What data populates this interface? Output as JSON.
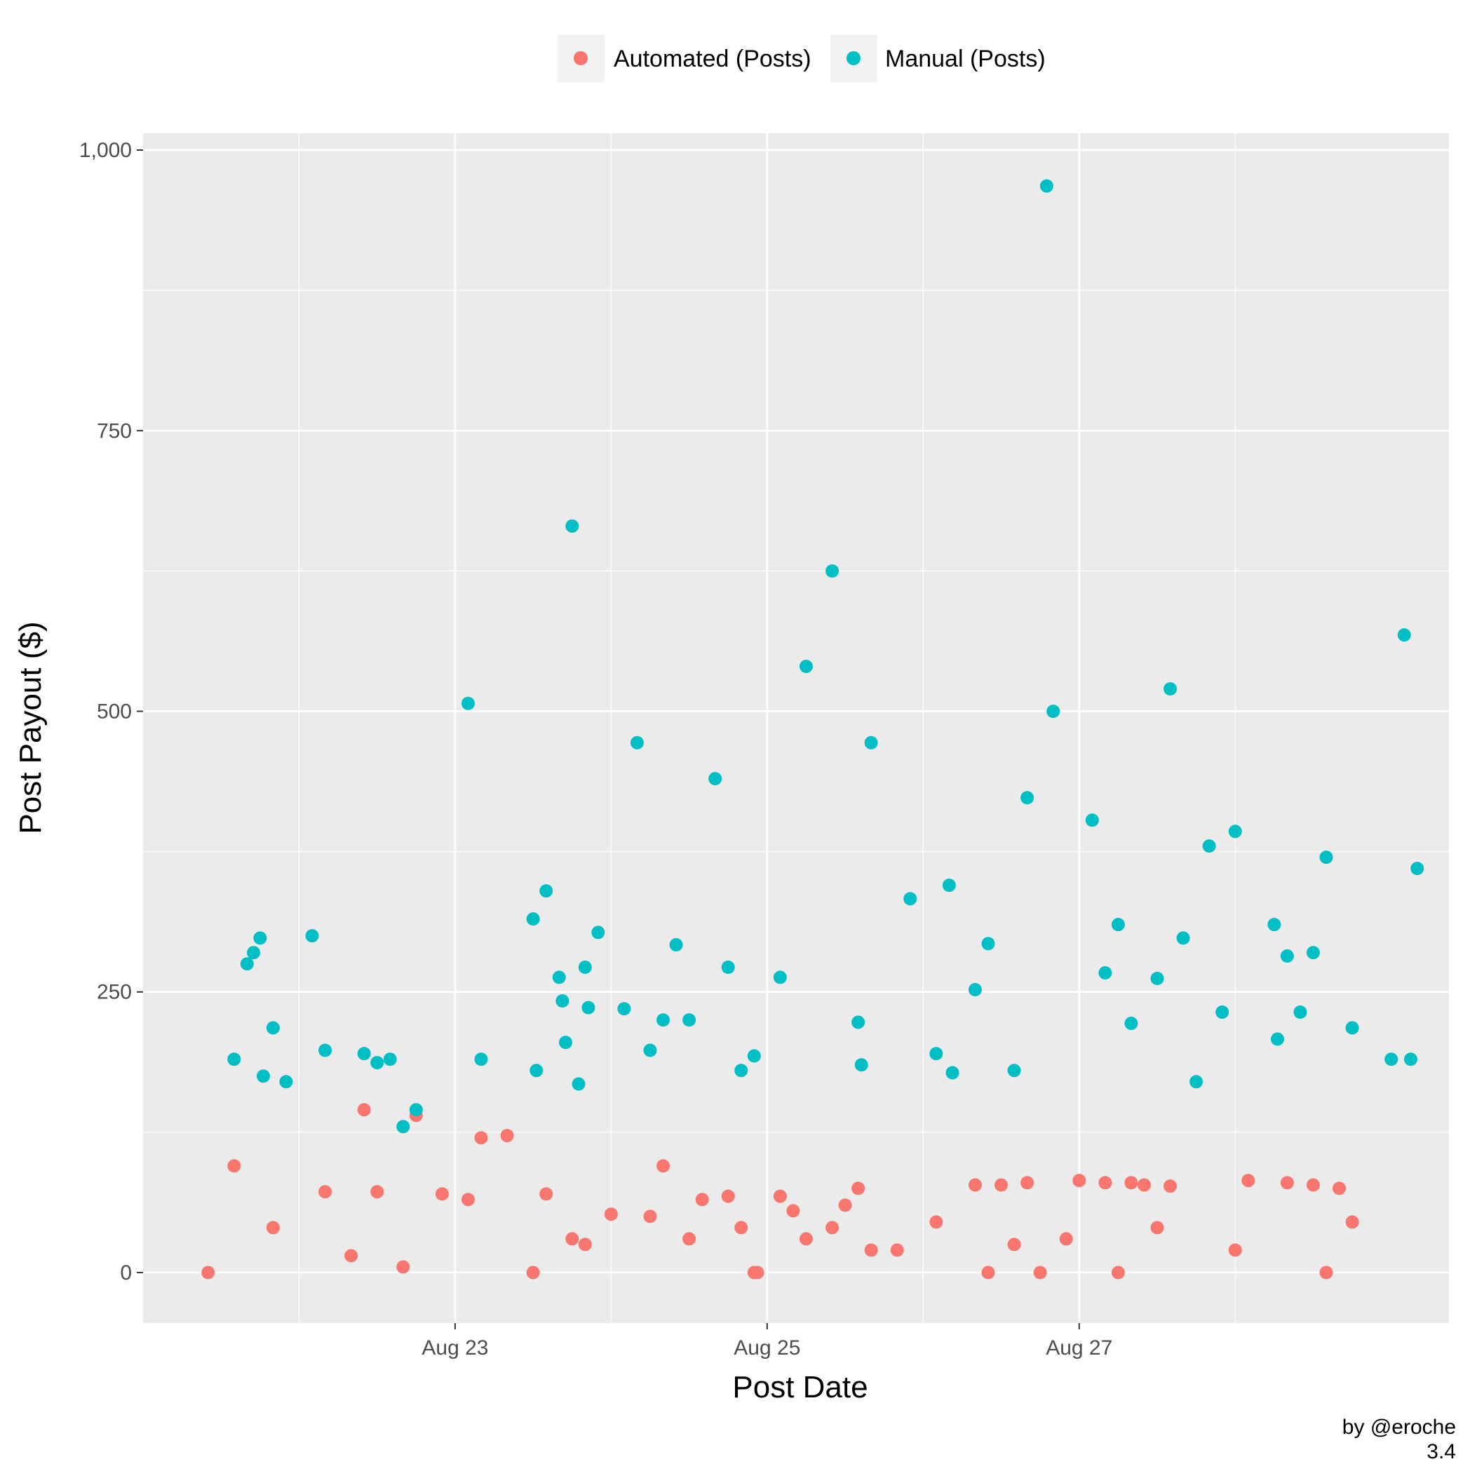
{
  "chart_data": {
    "type": "scatter",
    "xlabel": "Post Date",
    "ylabel": "Post Payout ($)",
    "x_axis_kind": "date",
    "x_ticks": [
      "2017-08-23",
      "2017-08-25",
      "2017-08-27"
    ],
    "x_tick_labels": [
      "Aug 23",
      "Aug 25",
      "Aug 27"
    ],
    "xlim": [
      "2017-08-21",
      "2017-08-28"
    ],
    "y_ticks": [
      0,
      250,
      500,
      750,
      1000
    ],
    "y_tick_labels": [
      "0",
      "250",
      "500",
      "750",
      "1,000"
    ],
    "ylim": [
      -45,
      1015
    ],
    "grid": true,
    "legend_position": "top",
    "colors": {
      "Automated (Posts)": "#F8766D",
      "Manual (Posts)": "#00BFC4"
    },
    "series": [
      {
        "name": "Automated (Posts)",
        "points": [
          [
            "2017-08-21 14:00",
            95
          ],
          [
            "2017-08-22 04:00",
            72
          ],
          [
            "2017-08-22 10:00",
            145
          ],
          [
            "2017-08-22 12:00",
            72
          ],
          [
            "2017-08-21 20:00",
            40
          ],
          [
            "2017-08-22 08:00",
            15
          ],
          [
            "2017-08-21 10:00",
            0
          ],
          [
            "2017-08-22 16:00",
            5
          ],
          [
            "2017-08-22 18:00",
            140
          ],
          [
            "2017-08-23 04:00",
            120
          ],
          [
            "2017-08-23 08:00",
            122
          ],
          [
            "2017-08-22 22:00",
            70
          ],
          [
            "2017-08-23 02:00",
            65
          ],
          [
            "2017-08-23 14:00",
            70
          ],
          [
            "2017-08-23 12:00",
            0
          ],
          [
            "2017-08-23 18:00",
            30
          ],
          [
            "2017-08-23 20:00",
            25
          ],
          [
            "2017-08-24 08:00",
            95
          ],
          [
            "2017-08-24 06:00",
            50
          ],
          [
            "2017-08-24 14:00",
            65
          ],
          [
            "2017-08-24 18:00",
            68
          ],
          [
            "2017-08-24 20:00",
            40
          ],
          [
            "2017-08-24 00:00",
            52
          ],
          [
            "2017-08-24 22:00",
            0
          ],
          [
            "2017-08-24 12:00",
            30
          ],
          [
            "2017-08-25 02:00",
            68
          ],
          [
            "2017-08-25 04:00",
            55
          ],
          [
            "2017-08-25 12:00",
            60
          ],
          [
            "2017-08-25 14:00",
            75
          ],
          [
            "2017-08-25 06:00",
            30
          ],
          [
            "2017-08-25 16:00",
            20
          ],
          [
            "2017-08-24 22:30",
            0
          ],
          [
            "2017-08-25 10:00",
            40
          ],
          [
            "2017-08-26 08:00",
            78
          ],
          [
            "2017-08-26 12:00",
            78
          ],
          [
            "2017-08-26 16:00",
            80
          ],
          [
            "2017-08-26 14:00",
            25
          ],
          [
            "2017-08-26 10:00",
            0
          ],
          [
            "2017-08-25 20:00",
            20
          ],
          [
            "2017-08-26 02:00",
            45
          ],
          [
            "2017-08-26 18:00",
            0
          ],
          [
            "2017-08-27 00:00",
            82
          ],
          [
            "2017-08-27 04:00",
            80
          ],
          [
            "2017-08-27 08:00",
            80
          ],
          [
            "2017-08-27 10:00",
            78
          ],
          [
            "2017-08-27 14:00",
            77
          ],
          [
            "2017-08-26 22:00",
            30
          ],
          [
            "2017-08-27 12:00",
            40
          ],
          [
            "2017-08-27 06:00",
            0
          ],
          [
            "2017-08-28 02:00",
            82
          ],
          [
            "2017-08-28 08:00",
            80
          ],
          [
            "2017-08-28 12:00",
            78
          ],
          [
            "2017-08-28 16:00",
            75
          ],
          [
            "2017-08-28 00:00",
            20
          ],
          [
            "2017-08-28 14:00",
            0
          ],
          [
            "2017-08-28 18:00",
            45
          ]
        ]
      },
      {
        "name": "Manual (Posts)",
        "points": [
          [
            "2017-08-21 17:00",
            285
          ],
          [
            "2017-08-21 18:00",
            298
          ],
          [
            "2017-08-22 02:00",
            300
          ],
          [
            "2017-08-21 16:00",
            275
          ],
          [
            "2017-08-22 04:00",
            198
          ],
          [
            "2017-08-22 10:00",
            195
          ],
          [
            "2017-08-22 12:00",
            187
          ],
          [
            "2017-08-21 20:00",
            218
          ],
          [
            "2017-08-21 22:00",
            170
          ],
          [
            "2017-08-22 18:00",
            145
          ],
          [
            "2017-08-21 14:00",
            190
          ],
          [
            "2017-08-21 18:30",
            175
          ],
          [
            "2017-08-22 14:00",
            190
          ],
          [
            "2017-08-22 16:00",
            130
          ],
          [
            "2017-08-23 02:00",
            507
          ],
          [
            "2017-08-23 18:00",
            665
          ],
          [
            "2017-08-23 14:00",
            340
          ],
          [
            "2017-08-23 12:00",
            315
          ],
          [
            "2017-08-23 22:00",
            303
          ],
          [
            "2017-08-23 20:00",
            272
          ],
          [
            "2017-08-23 16:00",
            263
          ],
          [
            "2017-08-23 16:30",
            242
          ],
          [
            "2017-08-23 20:30",
            236
          ],
          [
            "2017-08-23 17:00",
            205
          ],
          [
            "2017-08-23 04:00",
            190
          ],
          [
            "2017-08-23 12:30",
            180
          ],
          [
            "2017-08-23 19:00",
            168
          ],
          [
            "2017-08-24 04:00",
            472
          ],
          [
            "2017-08-24 16:00",
            440
          ],
          [
            "2017-08-24 18:00",
            272
          ],
          [
            "2017-08-24 10:00",
            292
          ],
          [
            "2017-08-24 02:00",
            235
          ],
          [
            "2017-08-24 08:00",
            225
          ],
          [
            "2017-08-24 12:00",
            225
          ],
          [
            "2017-08-24 06:00",
            198
          ],
          [
            "2017-08-24 22:00",
            193
          ],
          [
            "2017-08-24 20:00",
            180
          ],
          [
            "2017-08-25 06:00",
            540
          ],
          [
            "2017-08-25 10:00",
            625
          ],
          [
            "2017-08-25 16:00",
            472
          ],
          [
            "2017-08-25 22:00",
            333
          ],
          [
            "2017-08-26 04:00",
            345
          ],
          [
            "2017-08-25 02:00",
            263
          ],
          [
            "2017-08-25 14:00",
            223
          ],
          [
            "2017-08-25 14:30",
            185
          ],
          [
            "2017-08-26 02:00",
            195
          ],
          [
            "2017-08-26 04:30",
            178
          ],
          [
            "2017-08-26 19:00",
            968
          ],
          [
            "2017-08-26 20:00",
            500
          ],
          [
            "2017-08-26 16:00",
            423
          ],
          [
            "2017-08-27 02:00",
            403
          ],
          [
            "2017-08-27 06:00",
            310
          ],
          [
            "2017-08-26 10:00",
            293
          ],
          [
            "2017-08-27 04:00",
            267
          ],
          [
            "2017-08-26 08:00",
            252
          ],
          [
            "2017-08-26 14:00",
            180
          ],
          [
            "2017-08-27 14:00",
            520
          ],
          [
            "2017-08-27 16:00",
            298
          ],
          [
            "2017-08-27 12:00",
            262
          ],
          [
            "2017-08-27 08:00",
            222
          ],
          [
            "2017-08-27 20:00",
            380
          ],
          [
            "2017-08-28 00:00",
            393
          ],
          [
            "2017-08-28 06:00",
            310
          ],
          [
            "2017-08-28 08:00",
            282
          ],
          [
            "2017-08-27 22:00",
            232
          ],
          [
            "2017-08-28 06:30",
            208
          ],
          [
            "2017-08-27 18:00",
            170
          ],
          [
            "2017-08-28 14:00",
            370
          ],
          [
            "2017-08-28 12:00",
            285
          ],
          [
            "2017-08-28 10:00",
            232
          ],
          [
            "2017-08-29 02:00",
            568
          ],
          [
            "2017-08-29 04:00",
            360
          ],
          [
            "2017-08-28 18:00",
            218
          ],
          [
            "2017-08-29 00:00",
            190
          ],
          [
            "2017-08-29 03:00",
            190
          ]
        ]
      }
    ]
  },
  "caption": {
    "line1": "by @eroche",
    "line2": "3.4"
  }
}
